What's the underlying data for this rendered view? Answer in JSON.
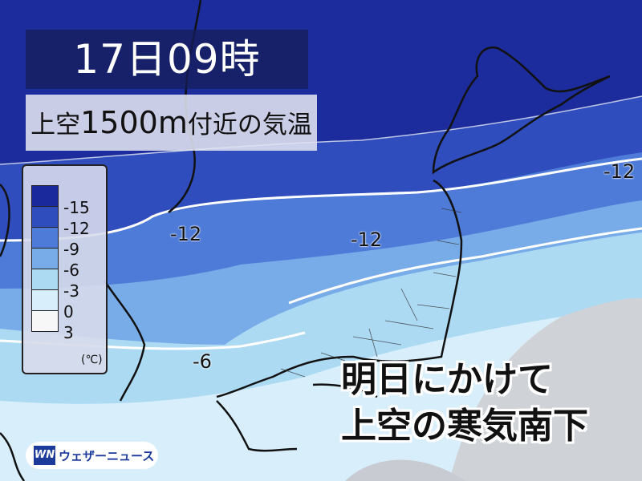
{
  "header": {
    "datetime": "17日09時",
    "subtitle_prefix": "上空",
    "subtitle_height": "1500m",
    "subtitle_suffix": "付近の気温"
  },
  "legend": {
    "items": [
      {
        "label": "-15",
        "color": "#1a2a9c"
      },
      {
        "label": "-12",
        "color": "#2f4dbd"
      },
      {
        "label": "-9",
        "color": "#4e7bd8"
      },
      {
        "label": "-6",
        "color": "#78ace8"
      },
      {
        "label": "-3",
        "color": "#acdaf3"
      },
      {
        "label": "0",
        "color": "#d8effb"
      },
      {
        "label": "3",
        "color": "#f7f7f7"
      }
    ],
    "unit": "(℃)"
  },
  "isotherm_labels": [
    "-12",
    "-12",
    "-12",
    "-6"
  ],
  "headline": {
    "line1": "明日にかけて",
    "line2": "上空の寒気南下"
  },
  "logo": {
    "mark": "WN",
    "text": "ウェザーニュース"
  }
}
